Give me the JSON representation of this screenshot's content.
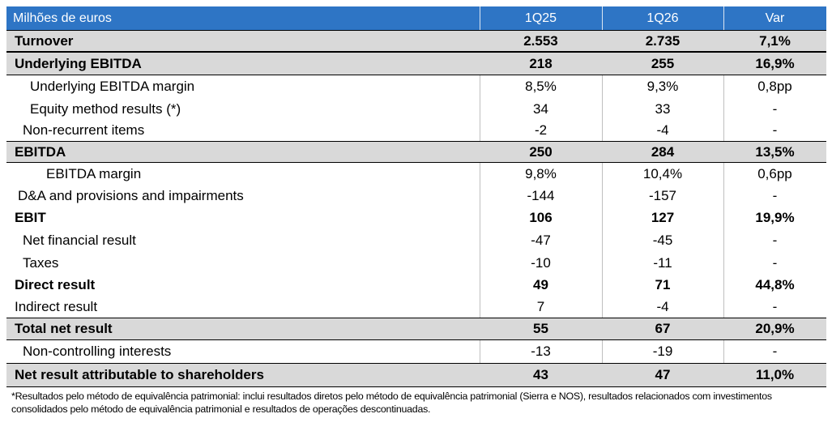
{
  "header": {
    "label": "Milhões de euros",
    "columns": [
      "1Q25",
      "1Q26",
      "Var"
    ]
  },
  "rows": [
    {
      "label": "Turnover",
      "values": [
        "2.553",
        "2.735",
        "7,1%"
      ]
    },
    {
      "label": "Underlying EBITDA",
      "values": [
        "218",
        "255",
        "16,9%"
      ]
    },
    {
      "label": "Underlying EBITDA margin",
      "values": [
        "8,5%",
        "9,3%",
        "0,8pp"
      ]
    },
    {
      "label": "Equity method results (*)",
      "values": [
        "34",
        "33",
        "-"
      ]
    },
    {
      "label": "Non-recurrent items",
      "values": [
        "-2",
        "-4",
        "-"
      ]
    },
    {
      "label": "EBITDA",
      "values": [
        "250",
        "284",
        "13,5%"
      ]
    },
    {
      "label": "EBITDA margin",
      "values": [
        "9,8%",
        "10,4%",
        "0,6pp"
      ]
    },
    {
      "label": "D&A and provisions and impairments",
      "values": [
        "-144",
        "-157",
        "-"
      ]
    },
    {
      "label": "EBIT",
      "values": [
        "106",
        "127",
        "19,9%"
      ]
    },
    {
      "label": "Net financial result",
      "values": [
        "-47",
        "-45",
        "-"
      ]
    },
    {
      "label": "Taxes",
      "values": [
        "-10",
        "-11",
        "-"
      ]
    },
    {
      "label": "Direct result",
      "values": [
        "49",
        "71",
        "44,8%"
      ]
    },
    {
      "label": "Indirect result",
      "values": [
        "7",
        "-4",
        "-"
      ]
    },
    {
      "label": "Total net result",
      "values": [
        "55",
        "67",
        "20,9%"
      ]
    },
    {
      "label": "Non-controlling interests",
      "values": [
        "-13",
        "-19",
        "-"
      ]
    },
    {
      "label": "Net result attributable to shareholders",
      "values": [
        "43",
        "47",
        "11,0%"
      ]
    }
  ],
  "footnote": "*Resultados pelo método de equivalência patrimonial: inclui resultados diretos pelo método de equivalência patrimonial (Sierra e NOS), resultados relacionados com investimentos consolidados pelo método de equivalência patrimonial e resultados de operações descontinuadas."
}
